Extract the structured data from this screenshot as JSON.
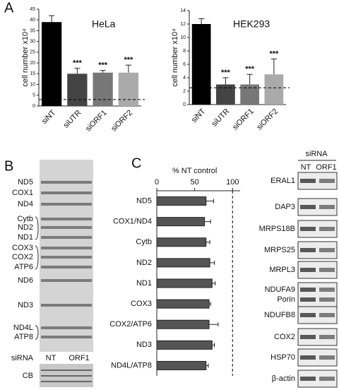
{
  "panels": {
    "a": "A",
    "b": "B",
    "c": "C"
  },
  "chart_data": [
    {
      "type": "bar",
      "title": "HeLa",
      "y_label": "cell number x10⁴",
      "categories": [
        "siNT",
        "siUTR",
        "siORF1",
        "siORF2"
      ],
      "values": [
        39,
        15,
        15.5,
        15.5
      ],
      "errors": [
        3,
        2.5,
        1,
        3.5
      ],
      "colors": [
        "#000000",
        "#444444",
        "#777777",
        "#aaaaaa"
      ],
      "annotations": [
        null,
        "***",
        "***",
        "***"
      ],
      "reference_line": 3,
      "ylim": [
        0,
        45
      ],
      "yticks": [
        0,
        5,
        10,
        15,
        20,
        25,
        30,
        35,
        40,
        45
      ]
    },
    {
      "type": "bar",
      "title": "HEK293",
      "y_label": "cell number x10⁴",
      "categories": [
        "siNT",
        "siUTR",
        "siORF1",
        "siORF2"
      ],
      "values": [
        12,
        3,
        3,
        4.5
      ],
      "errors": [
        0.8,
        1,
        1.5,
        2.3
      ],
      "colors": [
        "#000000",
        "#444444",
        "#777777",
        "#aaaaaa"
      ],
      "annotations": [
        null,
        "***",
        "***",
        "***"
      ],
      "reference_line": 2.5,
      "ylim": [
        0,
        14
      ],
      "yticks": [
        0,
        2,
        4,
        6,
        8,
        10,
        12,
        14
      ]
    },
    {
      "type": "hbar",
      "x_label": "% NT control",
      "categories": [
        "ND5",
        "COX1/ND4",
        "Cytb",
        "ND2",
        "ND1",
        "COX3",
        "COX2/ATP6",
        "ND3",
        "ND4L/ATP8"
      ],
      "values": [
        65,
        63,
        65,
        70,
        73,
        69,
        69,
        73,
        65
      ],
      "errors": [
        10,
        8,
        5,
        6,
        4,
        2,
        12,
        3,
        3
      ],
      "color": "#555555",
      "reference_line": 100,
      "xlim": [
        0,
        110
      ],
      "xticks": [
        0,
        50,
        100
      ]
    }
  ],
  "gel": {
    "bands": [
      "ND5",
      "COX1",
      "ND4",
      "Cytb",
      "ND2",
      "ND1",
      "COX3",
      "COX2",
      "ATP6",
      "ND6",
      "ND3",
      "ND4L",
      "ATP8"
    ],
    "siRNA": "siRNA",
    "lanes": [
      "NT",
      "ORF1"
    ],
    "loading": "CB"
  },
  "western": {
    "header": "siRNA",
    "lanes": [
      "NT",
      "ORF1"
    ],
    "proteins": [
      "ERAL1",
      "DAP3",
      "MRPS18B",
      "MRPS25",
      "MRPL3",
      "NDUFA9",
      "Porin",
      "NDUFB8",
      "COX2",
      "HSP70",
      "β-actin"
    ]
  }
}
